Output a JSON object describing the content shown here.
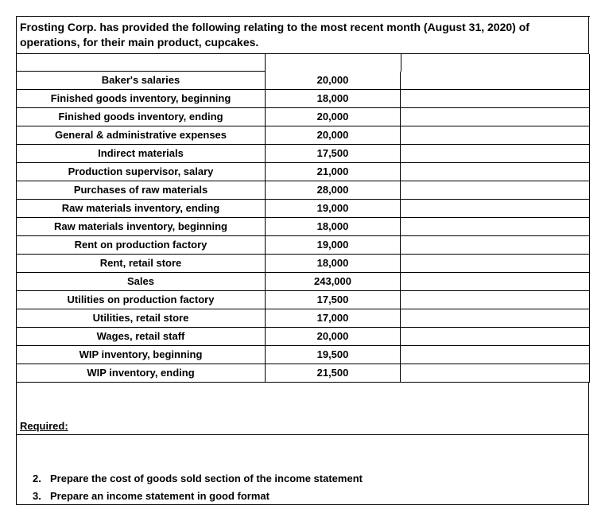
{
  "intro": "Frosting Corp. has provided the following relating to the most recent month (August 31, 2020) of operations, for their main product, cupcakes.",
  "items": [
    {
      "label": "Baker's salaries",
      "value": "20,000"
    },
    {
      "label": "Finished goods inventory, beginning",
      "value": "18,000"
    },
    {
      "label": "Finished goods inventory, ending",
      "value": "20,000"
    },
    {
      "label": "General & administrative expenses",
      "value": "20,000"
    },
    {
      "label": "Indirect materials",
      "value": "17,500"
    },
    {
      "label": "Production supervisor, salary",
      "value": "21,000"
    },
    {
      "label": "Purchases of raw materials",
      "value": "28,000"
    },
    {
      "label": "Raw materials inventory, ending",
      "value": "19,000"
    },
    {
      "label": "Raw materials inventory, beginning",
      "value": "18,000"
    },
    {
      "label": "Rent on production factory",
      "value": "19,000"
    },
    {
      "label": "Rent, retail store",
      "value": "18,000"
    },
    {
      "label": "Sales",
      "value": "243,000"
    },
    {
      "label": "Utilities on production factory",
      "value": "17,500"
    },
    {
      "label": "Utilities, retail store",
      "value": "17,000"
    },
    {
      "label": "Wages, retail staff",
      "value": "20,000"
    },
    {
      "label": "WIP inventory, beginning",
      "value": "19,500"
    },
    {
      "label": "WIP inventory, ending",
      "value": "21,500"
    }
  ],
  "required_label": "Required:",
  "req2_num": "2.",
  "req2_text": "Prepare the cost of goods sold section of the income statement",
  "req3_num": "3.",
  "req3_text": "Prepare an income statement in good format"
}
